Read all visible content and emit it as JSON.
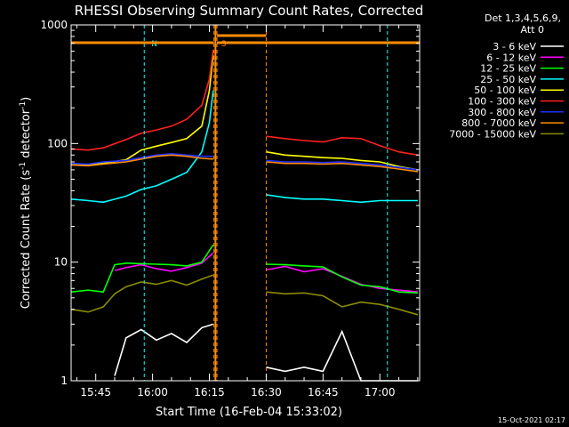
{
  "chart_data": {
    "type": "line",
    "title": "RHESSI Observing Summary Count Rates, Corrected",
    "xlabel": "Start Time (16-Feb-04 15:33:02)",
    "ylabel_main": "Corrected Count Rate (s",
    "ylabel_sup1": "-1",
    "ylabel_mid": " detector",
    "ylabel_sup2": "-1",
    "ylabel_end": ")",
    "footer": "15-Oct-2021 02:17",
    "y_scale": "log",
    "ylim": [
      1,
      1000
    ],
    "x_range_minutes": [
      5.5,
      97.5
    ],
    "grid": false,
    "legend_placement": "top-right",
    "legend_header": [
      "Det 1,3,4,5,6,9,",
      "Att 0"
    ],
    "x_ticks": [
      {
        "label": "15:45",
        "minute": 12
      },
      {
        "label": "16:00",
        "minute": 27
      },
      {
        "label": "16:15",
        "minute": 42
      },
      {
        "label": "16:30",
        "minute": 57
      },
      {
        "label": "16:45",
        "minute": 72
      },
      {
        "label": "17:00",
        "minute": 87
      }
    ],
    "y_ticks": [
      {
        "label": "1",
        "value": 1
      },
      {
        "label": "10",
        "value": 10
      },
      {
        "label": "100",
        "value": 100
      },
      {
        "label": "1000",
        "value": 1000
      }
    ],
    "markers": [
      {
        "label": "N",
        "start": 24.8,
        "end": 89,
        "color": "#00ffff"
      },
      {
        "label": "S",
        "start": 43.2,
        "end": 44,
        "color": "#ff8c00"
      }
    ],
    "data_gaps": [
      {
        "start": 43.6,
        "end": 57
      }
    ],
    "series": [
      {
        "name": "3 - 6 keV",
        "color": "#ffffff",
        "x": [
          17,
          20,
          24,
          28,
          32,
          36,
          40,
          43,
          57,
          62,
          67,
          72,
          77,
          82,
          87,
          92,
          97
        ],
        "y": [
          1.1,
          2.3,
          2.7,
          2.2,
          2.5,
          2.1,
          2.8,
          3.0,
          1.3,
          1.2,
          1.3,
          1.2,
          2.6,
          1.0,
          1.0,
          1.0,
          1.0
        ]
      },
      {
        "name": "6 - 12 keV",
        "color": "#ff00ff",
        "x": [
          17,
          20,
          24,
          28,
          32,
          36,
          40,
          43,
          57,
          62,
          67,
          72,
          77,
          82,
          87,
          92,
          97
        ],
        "y": [
          8.5,
          9.0,
          9.5,
          8.8,
          8.4,
          9.0,
          9.8,
          12,
          8.6,
          9.2,
          8.3,
          8.8,
          7.6,
          6.5,
          6.0,
          5.8,
          5.6
        ]
      },
      {
        "name": "12 - 25 keV",
        "color": "#00ff00",
        "x": [
          5.5,
          10,
          14,
          17,
          20,
          24,
          28,
          32,
          36,
          40,
          43,
          57,
          62,
          67,
          72,
          77,
          82,
          87,
          92,
          97
        ],
        "y": [
          5.6,
          5.8,
          5.6,
          9.5,
          9.8,
          9.7,
          9.6,
          9.5,
          9.3,
          10,
          14,
          9.6,
          9.5,
          9.3,
          9.1,
          7.5,
          6.4,
          6.2,
          5.6,
          5.5
        ]
      },
      {
        "name": "25 - 50 keV",
        "color": "#00ffff",
        "x": [
          5.5,
          10,
          14,
          20,
          24,
          28,
          32,
          36,
          40,
          42,
          43,
          57,
          62,
          67,
          72,
          77,
          82,
          87,
          92,
          97
        ],
        "y": [
          34,
          33,
          32,
          36,
          41,
          44,
          50,
          57,
          85,
          150,
          280,
          37,
          35,
          34,
          34,
          33,
          32,
          33,
          33,
          33
        ]
      },
      {
        "name": "50 - 100 keV",
        "color": "#ffff00",
        "x": [
          5.5,
          10,
          14,
          20,
          24,
          28,
          32,
          36,
          40,
          42,
          43,
          57,
          62,
          67,
          72,
          77,
          82,
          87,
          92,
          97
        ],
        "y": [
          67,
          66,
          68,
          73,
          88,
          95,
          102,
          110,
          140,
          280,
          560,
          85,
          80,
          78,
          76,
          75,
          72,
          70,
          64,
          60
        ]
      },
      {
        "name": "100 - 300 keV",
        "color": "#ff2020",
        "x": [
          5.5,
          10,
          14,
          20,
          24,
          28,
          32,
          36,
          40,
          42,
          43,
          57,
          62,
          67,
          72,
          77,
          82,
          87,
          92,
          97
        ],
        "y": [
          90,
          88,
          92,
          108,
          122,
          130,
          140,
          160,
          210,
          350,
          620,
          115,
          110,
          106,
          103,
          112,
          110,
          96,
          85,
          80
        ]
      },
      {
        "name": "300 - 800 keV",
        "color": "#2030ff",
        "x": [
          5.5,
          10,
          14,
          20,
          24,
          28,
          32,
          36,
          40,
          43,
          57,
          62,
          67,
          72,
          77,
          82,
          87,
          92,
          97
        ],
        "y": [
          68,
          67,
          70,
          72,
          76,
          80,
          82,
          80,
          78,
          78,
          72,
          70,
          70,
          69,
          70,
          68,
          66,
          63,
          60
        ]
      },
      {
        "name": "800 - 7000 keV",
        "color": "#ff8c00",
        "x": [
          5.5,
          10,
          14,
          20,
          24,
          28,
          32,
          36,
          40,
          43,
          57,
          62,
          67,
          72,
          77,
          82,
          87,
          92,
          97
        ],
        "y": [
          66,
          65,
          67,
          70,
          74,
          78,
          80,
          78,
          75,
          74,
          70,
          68,
          68,
          67,
          68,
          66,
          64,
          61,
          58
        ]
      },
      {
        "name": "7000 - 15000 keV",
        "color": "#8b8b00",
        "x": [
          5.5,
          10,
          14,
          17,
          20,
          24,
          28,
          32,
          36,
          40,
          43,
          57,
          62,
          67,
          72,
          77,
          82,
          87,
          92,
          97
        ],
        "y": [
          4.0,
          3.8,
          4.2,
          5.4,
          6.2,
          6.8,
          6.5,
          7.0,
          6.4,
          7.2,
          7.8,
          5.6,
          5.4,
          5.5,
          5.2,
          4.2,
          4.6,
          4.4,
          4.0,
          3.6
        ]
      }
    ]
  }
}
